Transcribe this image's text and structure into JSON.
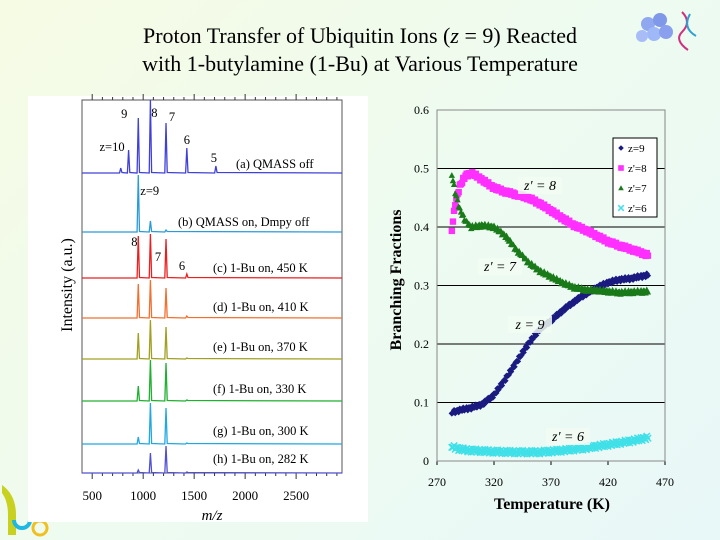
{
  "slide": {
    "title_line1_pre": "Proton Transfer of Ubiquitin Ions (",
    "title_z": "z",
    "title_line1_post": " = 9) Reacted",
    "title_line2": "with 1-butylamine (1-Bu) at Various Temperature"
  },
  "chart_data": [
    {
      "type": "line",
      "subtype": "stacked mass spectra",
      "xlabel": "m/z",
      "ylabel": "Intensity (a.u.)",
      "xlim": [
        400,
        2950
      ],
      "xticks": [
        500,
        1000,
        1500,
        2000,
        2500
      ],
      "peak_positions_mz": {
        "10": 857,
        "9": 952,
        "8": 1071,
        "7": 1224,
        "6": 1428,
        "5": 1713,
        "11": 780
      },
      "traces": [
        {
          "label": "(a) QMASS off",
          "color": "#4040d8",
          "peaks": {
            "11": 5,
            "10": 23,
            "9": 55,
            "8": 73,
            "7": 50,
            "6": 25,
            "5": 7
          },
          "peak_labels": [
            {
              "z": "10",
              "text": "z=10"
            },
            {
              "z": "9",
              "text": "9"
            },
            {
              "z": "8",
              "text": "8"
            },
            {
              "z": "7",
              "text": "7"
            },
            {
              "z": "6",
              "text": "6"
            },
            {
              "z": "5",
              "text": "5"
            }
          ]
        },
        {
          "label": "(b) QMASS on, Dmpy off",
          "color": "#2a9ad8",
          "peaks": {
            "9": 57,
            "8": 11,
            "7": 2
          },
          "peak_labels": [
            {
              "z": "9",
              "text": "z=9"
            }
          ]
        },
        {
          "label": "(c) 1-Bu on, 450 K",
          "color": "#e82020",
          "peaks": {
            "9": 42,
            "8": 44,
            "7": 39,
            "6": 4
          },
          "peak_labels": [
            {
              "z": "8",
              "text": "8"
            },
            {
              "z": "7",
              "text": "7"
            },
            {
              "z": "6",
              "text": "6"
            }
          ]
        },
        {
          "label": "(d) 1-Bu on, 410 K",
          "color": "#f07030",
          "peaks": {
            "9": 34,
            "8": 38,
            "7": 30,
            "6": 2
          }
        },
        {
          "label": "(e) 1-Bu on, 370 K",
          "color": "#a0a020",
          "peaks": {
            "9": 26,
            "8": 39,
            "7": 32,
            "6": 1
          }
        },
        {
          "label": "(f) 1-Bu on, 330 K",
          "color": "#20b030",
          "peaks": {
            "9": 15,
            "8": 41,
            "7": 38,
            "6": 1
          }
        },
        {
          "label": "(g) 1-Bu on, 300 K",
          "color": "#20a8e0",
          "peaks": {
            "9": 7,
            "8": 41,
            "7": 36,
            "6": 1
          }
        },
        {
          "label": "(h) 1-Bu on, 282 K",
          "color": "#5050d0",
          "peaks": {
            "9": 3,
            "8": 20,
            "7": 27,
            "6": 1
          }
        }
      ]
    },
    {
      "type": "scatter",
      "xlabel": "Temperature (K)",
      "ylabel": "Branching Fractions",
      "xlim": [
        270,
        470
      ],
      "ylim": [
        0,
        0.6
      ],
      "xticks": [
        "270",
        "320",
        "370",
        "420",
        "470"
      ],
      "yticks": [
        "0",
        "0.1",
        "0.2",
        "0.3",
        "0.4",
        "0.5",
        "0.6"
      ],
      "grid": "horizontal",
      "legend_placement": "top-right",
      "series": [
        {
          "name": "z=9",
          "color": "#1a1a80",
          "marker": "diamond",
          "annotation": "z = 9",
          "x": [
            283,
            290,
            300,
            310,
            320,
            330,
            340,
            350,
            360,
            370,
            380,
            390,
            400,
            410,
            420,
            430,
            440,
            455
          ],
          "y": [
            0.083,
            0.087,
            0.091,
            0.097,
            0.113,
            0.14,
            0.17,
            0.2,
            0.225,
            0.24,
            0.257,
            0.272,
            0.285,
            0.296,
            0.305,
            0.31,
            0.312,
            0.318
          ]
        },
        {
          "name": "z'=8",
          "color": "#ff30ff",
          "marker": "square",
          "annotation": "z′ = 8",
          "x": [
            283,
            286,
            290,
            295,
            300,
            305,
            310,
            320,
            330,
            340,
            350,
            360,
            370,
            380,
            390,
            400,
            410,
            420,
            430,
            440,
            455
          ],
          "y": [
            0.395,
            0.44,
            0.47,
            0.488,
            0.492,
            0.487,
            0.48,
            0.467,
            0.46,
            0.455,
            0.45,
            0.44,
            0.428,
            0.415,
            0.403,
            0.395,
            0.385,
            0.375,
            0.368,
            0.362,
            0.352
          ]
        },
        {
          "name": "z'=7",
          "color": "#1a7a1a",
          "marker": "triangle",
          "annotation": "z′ = 7",
          "x": [
            283,
            286,
            290,
            295,
            300,
            310,
            320,
            330,
            340,
            350,
            360,
            370,
            380,
            390,
            400,
            410,
            420,
            430,
            440,
            455
          ],
          "y": [
            0.49,
            0.46,
            0.43,
            0.41,
            0.4,
            0.403,
            0.4,
            0.385,
            0.36,
            0.34,
            0.325,
            0.315,
            0.305,
            0.297,
            0.293,
            0.292,
            0.29,
            0.288,
            0.289,
            0.29
          ]
        },
        {
          "name": "z'=6",
          "color": "#40e0e8",
          "marker": "x",
          "annotation": "z′ = 6",
          "x": [
            283,
            290,
            300,
            320,
            340,
            360,
            380,
            400,
            420,
            440,
            455
          ],
          "y": [
            0.025,
            0.02,
            0.018,
            0.016,
            0.015,
            0.015,
            0.018,
            0.022,
            0.028,
            0.034,
            0.04
          ]
        }
      ]
    }
  ]
}
